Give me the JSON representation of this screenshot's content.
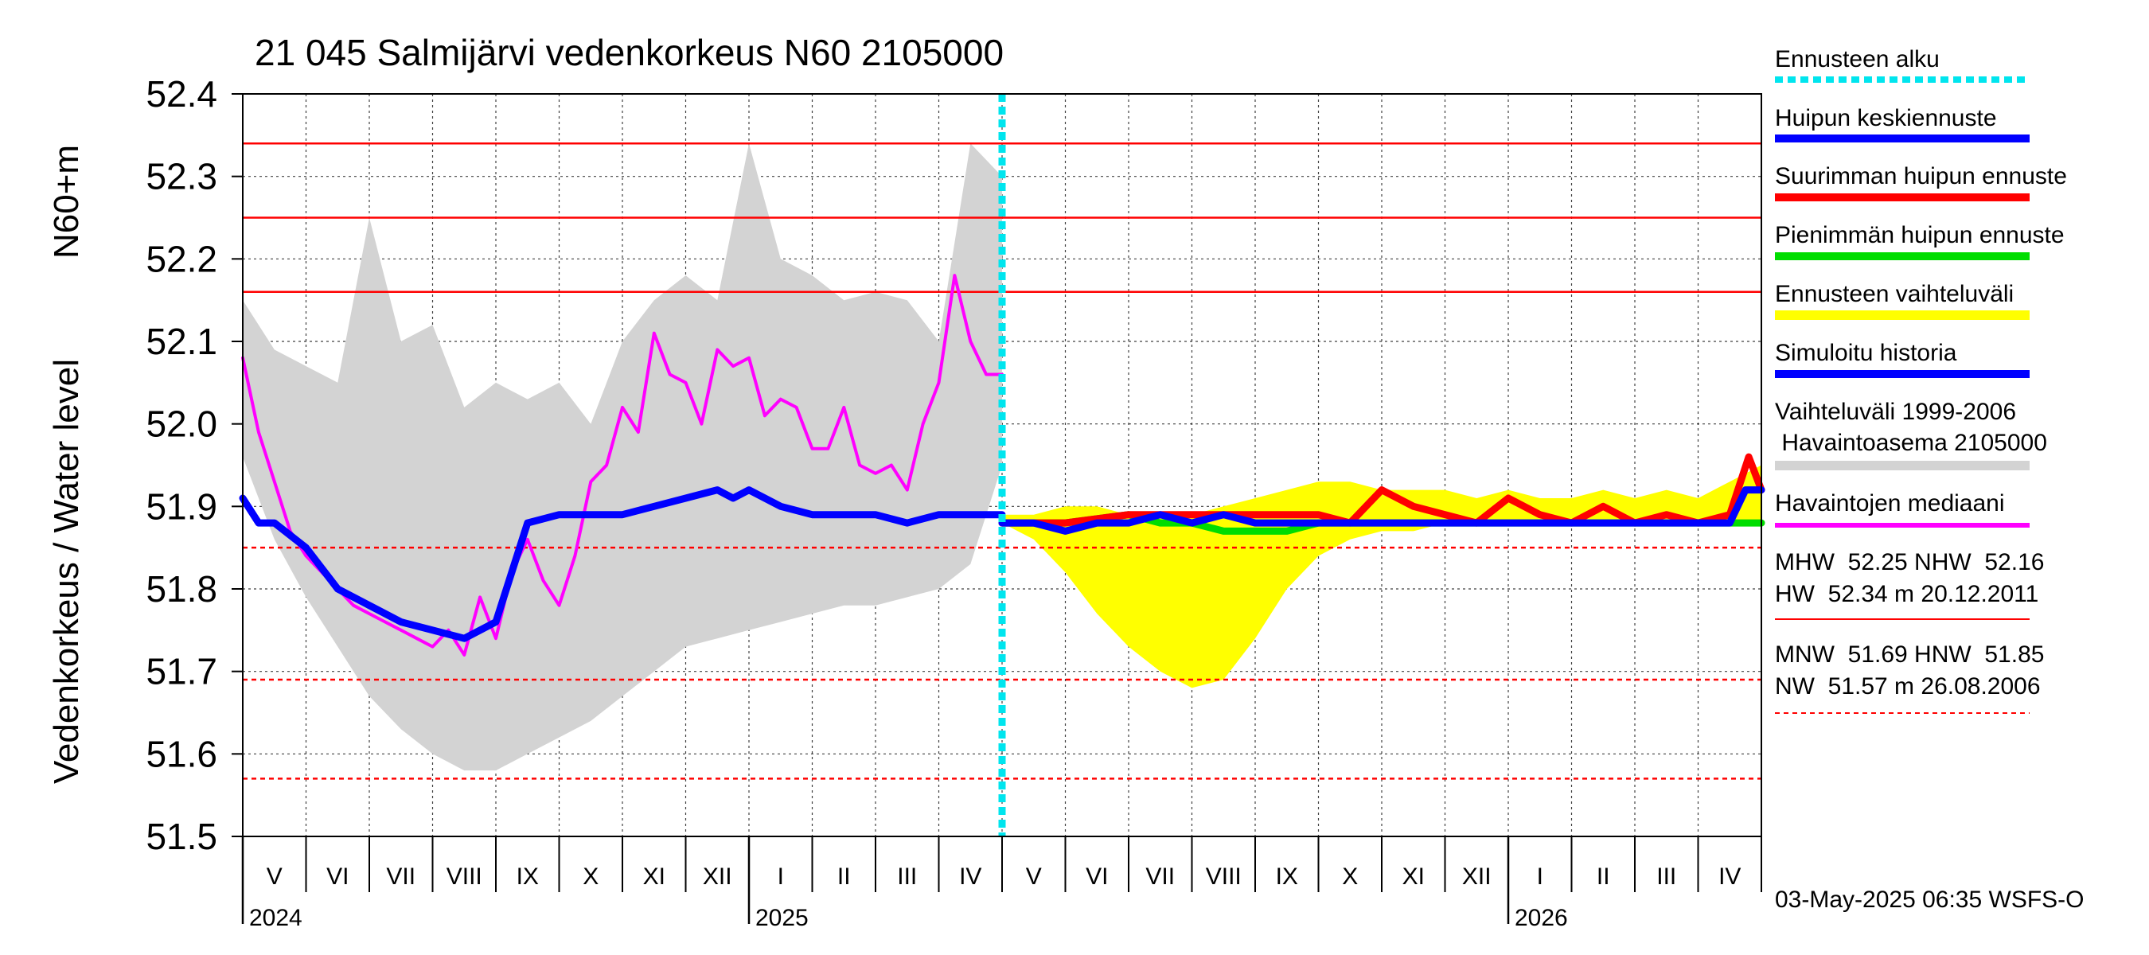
{
  "chart_data": {
    "type": "line",
    "title": "21 045 Salmijärvi vedenkorkeus N60 2105000",
    "ylabel_upper": "N60+m",
    "ylabel_lower": "Vedenkorkeus / Water level",
    "ylim": [
      51.5,
      52.4
    ],
    "y_ticks": [
      "52.4",
      "52.3",
      "52.2",
      "52.1",
      "52.0",
      "51.9",
      "51.8",
      "51.7",
      "51.6",
      "51.5"
    ],
    "month_labels": [
      "V",
      "VI",
      "VII",
      "VIII",
      "IX",
      "X",
      "XI",
      "XII",
      "I",
      "II",
      "III",
      "IV",
      "V",
      "VI",
      "VII",
      "VIII",
      "IX",
      "X",
      "XI",
      "XII",
      "I",
      "II",
      "III",
      "IV"
    ],
    "year_labels": [
      "2024",
      "2025",
      "2026"
    ],
    "forecast_start_month_index": 12,
    "reference_lines": [
      {
        "name": "HW",
        "value": 52.34,
        "style": "solid"
      },
      {
        "name": "MHW",
        "value": 52.25,
        "style": "solid"
      },
      {
        "name": "NHW",
        "value": 52.16,
        "style": "solid"
      },
      {
        "name": "HNW",
        "value": 51.85,
        "style": "dashed"
      },
      {
        "name": "MNW",
        "value": 51.69,
        "style": "dashed"
      },
      {
        "name": "NW",
        "value": 51.57,
        "style": "dashed"
      }
    ],
    "series": [
      {
        "name": "Vaihteluväli 1999-2006 Havaintoasema 2105000",
        "kind": "band",
        "color": "#d3d3d3",
        "x": [
          0,
          0.5,
          1,
          1.5,
          2,
          2.5,
          3,
          3.5,
          4,
          4.5,
          5,
          5.5,
          6,
          6.5,
          7,
          7.5,
          8,
          8.5,
          9,
          9.5,
          10,
          10.5,
          11,
          11.5,
          12
        ],
        "low": [
          51.96,
          51.86,
          51.79,
          51.73,
          51.67,
          51.63,
          51.6,
          51.58,
          51.58,
          51.6,
          51.62,
          51.64,
          51.67,
          51.7,
          51.73,
          51.74,
          51.75,
          51.76,
          51.77,
          51.78,
          51.78,
          51.79,
          51.8,
          51.83,
          51.95
        ],
        "high": [
          52.15,
          52.09,
          52.07,
          52.05,
          52.25,
          52.1,
          52.12,
          52.02,
          52.05,
          52.03,
          52.05,
          52.0,
          52.1,
          52.15,
          52.18,
          52.15,
          52.34,
          52.2,
          52.18,
          52.15,
          52.16,
          52.15,
          52.1,
          52.34,
          52.3
        ]
      },
      {
        "name": "Havaintojen mediaani",
        "kind": "line",
        "color": "#ff00ff",
        "x": [
          0,
          0.25,
          0.5,
          0.75,
          1,
          1.25,
          1.5,
          1.75,
          2,
          2.25,
          2.5,
          2.75,
          3,
          3.25,
          3.5,
          3.75,
          4,
          4.25,
          4.5,
          4.75,
          5,
          5.25,
          5.5,
          5.75,
          6,
          6.25,
          6.5,
          6.75,
          7,
          7.25,
          7.5,
          7.75,
          8,
          8.25,
          8.5,
          8.75,
          9,
          9.25,
          9.5,
          9.75,
          10,
          10.25,
          10.5,
          10.75,
          11,
          11.25,
          11.5,
          11.75,
          12
        ],
        "y": [
          52.08,
          51.99,
          51.93,
          51.87,
          51.84,
          51.82,
          51.8,
          51.78,
          51.77,
          51.76,
          51.75,
          51.74,
          51.73,
          51.75,
          51.72,
          51.79,
          51.74,
          51.82,
          51.86,
          51.81,
          51.78,
          51.84,
          51.93,
          51.95,
          52.02,
          51.99,
          52.11,
          52.06,
          52.05,
          52.0,
          52.09,
          52.07,
          52.08,
          52.01,
          52.03,
          52.02,
          51.97,
          51.97,
          52.02,
          51.95,
          51.94,
          51.95,
          51.92,
          52.0,
          52.05,
          52.18,
          52.1,
          52.06,
          52.06
        ]
      },
      {
        "name": "Simuloitu historia",
        "kind": "line",
        "color": "#0000ff",
        "x": [
          0,
          0.25,
          0.5,
          1,
          1.5,
          2,
          2.5,
          3,
          3.5,
          4,
          4.25,
          4.5,
          5,
          5.5,
          6,
          6.5,
          7,
          7.5,
          7.75,
          8,
          8.5,
          9,
          9.5,
          10,
          10.5,
          11,
          11.5,
          12
        ],
        "y": [
          51.91,
          51.88,
          51.88,
          51.85,
          51.8,
          51.78,
          51.76,
          51.75,
          51.74,
          51.76,
          51.82,
          51.88,
          51.89,
          51.89,
          51.89,
          51.9,
          51.91,
          51.92,
          51.91,
          51.92,
          51.9,
          51.89,
          51.89,
          51.89,
          51.88,
          51.89,
          51.89,
          51.89
        ]
      },
      {
        "name": "Ennusteen vaihteluväli",
        "kind": "band",
        "color": "#ffff00",
        "x": [
          12,
          12.5,
          13,
          13.5,
          14,
          14.5,
          15,
          15.5,
          16,
          16.5,
          17,
          17.5,
          18,
          18.5,
          19,
          19.5,
          20,
          20.5,
          21,
          21.5,
          22,
          22.5,
          23,
          23.5,
          24
        ],
        "low": [
          51.88,
          51.86,
          51.82,
          51.77,
          51.73,
          51.7,
          51.68,
          51.69,
          51.74,
          51.8,
          51.84,
          51.86,
          51.87,
          51.87,
          51.88,
          51.88,
          51.88,
          51.88,
          51.88,
          51.88,
          51.88,
          51.88,
          51.88,
          51.88,
          51.88
        ],
        "high": [
          51.89,
          51.89,
          51.9,
          51.9,
          51.89,
          51.89,
          51.89,
          51.9,
          51.91,
          51.92,
          51.93,
          51.93,
          51.92,
          51.92,
          51.92,
          51.91,
          51.92,
          51.91,
          51.91,
          51.92,
          51.91,
          51.92,
          51.91,
          51.93,
          51.95
        ]
      },
      {
        "name": "Pienimmän huipun ennuste",
        "kind": "line",
        "color": "#00dd00",
        "x": [
          12,
          13,
          14,
          14.5,
          15,
          15.5,
          16,
          16.5,
          17,
          17.5,
          18,
          19,
          20,
          21,
          22,
          23,
          24
        ],
        "y": [
          51.88,
          51.88,
          51.89,
          51.88,
          51.88,
          51.87,
          51.87,
          51.87,
          51.88,
          51.88,
          51.88,
          51.88,
          51.88,
          51.88,
          51.88,
          51.88,
          51.88
        ]
      },
      {
        "name": "Suurimman huipun ennuste",
        "kind": "line",
        "color": "#ff0000",
        "x": [
          12,
          13,
          14,
          15,
          16,
          17,
          17.5,
          18,
          18.5,
          19,
          19.5,
          20,
          20.5,
          21,
          21.5,
          22,
          22.5,
          23,
          23.5,
          23.8,
          24
        ],
        "y": [
          51.88,
          51.88,
          51.89,
          51.89,
          51.89,
          51.89,
          51.88,
          51.92,
          51.9,
          51.89,
          51.88,
          51.91,
          51.89,
          51.88,
          51.9,
          51.88,
          51.89,
          51.88,
          51.89,
          51.96,
          51.92
        ]
      },
      {
        "name": "Huipun keskiennuste",
        "kind": "line",
        "color": "#0000ff",
        "x": [
          12,
          12.5,
          13,
          13.5,
          14,
          14.5,
          15,
          15.5,
          16,
          16.5,
          17,
          17.5,
          18,
          19,
          20,
          21,
          22,
          22.5,
          23,
          23.5,
          23.75,
          24
        ],
        "y": [
          51.88,
          51.88,
          51.87,
          51.88,
          51.88,
          51.89,
          51.88,
          51.89,
          51.88,
          51.88,
          51.88,
          51.88,
          51.88,
          51.88,
          51.88,
          51.88,
          51.88,
          51.88,
          51.88,
          51.88,
          51.92,
          51.92
        ]
      }
    ]
  },
  "legend": {
    "items": [
      {
        "label": "Ennusteen alku",
        "color": "#00e5ee",
        "style": "dotted"
      },
      {
        "label": "Huipun keskiennuste",
        "color": "#0000ff",
        "style": "solid"
      },
      {
        "label": "Suurimman huipun ennuste",
        "color": "#ff0000",
        "style": "solid"
      },
      {
        "label": "Pienimmän huipun ennuste",
        "color": "#00dd00",
        "style": "solid"
      },
      {
        "label": "Ennusteen vaihteluväli",
        "color": "#ffff00",
        "style": "solid"
      },
      {
        "label": "Simuloitu historia",
        "color": "#0000ff",
        "style": "solid"
      },
      {
        "label_line1": "Vaihteluväli 1999-2006",
        "label_line2": " Havaintoasema 2105000",
        "color": "#d3d3d3",
        "style": "solid"
      },
      {
        "label": "Havaintojen mediaani",
        "color": "#ff00ff",
        "style": "solid"
      }
    ],
    "stats_high_line1": "MHW  52.25 NHW  52.16",
    "stats_high_line2": "HW  52.34 m 20.12.2011",
    "stats_low_line1": "MNW  51.69 HNW  51.85",
    "stats_low_line2": "NW  51.57 m 26.08.2006"
  },
  "footer": {
    "timestamp": "03-May-2025 06:35 WSFS-O"
  }
}
